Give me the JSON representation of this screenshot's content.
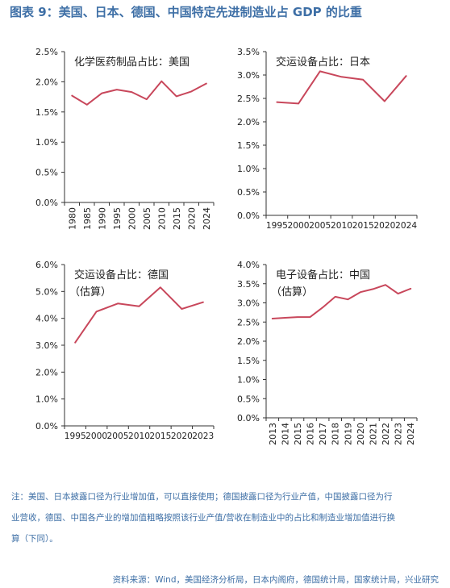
{
  "page": {
    "title": "图表 9：美国、日本、德国、中国特定先进制造业占 GDP 的比重",
    "note_lines": [
      "注：美国、日本披露口径为行业增加值，可以直接使用；德国披露口径为行业产值，中国披露口径为行",
      "业营收，德国、中国各产业的增加值粗略按照该行业产值/营收在制造业中的占比和制造业增加值进行换",
      "算（下同）。"
    ],
    "source": "资料来源：Wind，美国经济分析局，日本内阁府，德国统计局，国家统计局，兴业研究"
  },
  "colors": {
    "line": "#c8475b",
    "axis": "#333333",
    "text": "#222222",
    "blue_text": "#3e6fa6"
  },
  "chart_data": [
    {
      "type": "line",
      "title": "化学医药制品占比：美国",
      "subtitle": "",
      "x": [
        "1980",
        "1985",
        "1990",
        "1995",
        "2000",
        "2005",
        "2010",
        "2015",
        "2020",
        "2024"
      ],
      "xticks": [
        "1980",
        "1985",
        "1990",
        "1995",
        "2000",
        "2005",
        "2010",
        "2015",
        "2020",
        "2024"
      ],
      "xtick_rotated": true,
      "series": [
        {
          "values": [
            1.77,
            1.62,
            1.81,
            1.87,
            1.83,
            1.71,
            2.01,
            1.76,
            1.84,
            1.97
          ]
        }
      ],
      "ylim": [
        0,
        2.5
      ],
      "yticks": [
        "0.0%",
        "0.5%",
        "1.0%",
        "1.5%",
        "2.0%",
        "2.5%"
      ],
      "legend": "none"
    },
    {
      "type": "line",
      "title": "交运设备占比：日本",
      "subtitle": "",
      "x": [
        "1995",
        "2000",
        "2005",
        "2010",
        "2015",
        "2020",
        "2024"
      ],
      "xticks": [
        "1995",
        "2000",
        "2005",
        "2010",
        "2015",
        "2020",
        "2024"
      ],
      "xtick_rotated": false,
      "series": [
        {
          "values": [
            2.42,
            2.39,
            3.08,
            2.96,
            2.9,
            2.44,
            2.98
          ]
        }
      ],
      "ylim": [
        0,
        3.5
      ],
      "yticks": [
        "0.0%",
        "0.5%",
        "1.0%",
        "1.5%",
        "2.0%",
        "2.5%",
        "3.0%",
        "3.5%"
      ],
      "legend": "none"
    },
    {
      "type": "line",
      "title": "交运设备占比：德国",
      "subtitle": "（估算）",
      "x": [
        "1995",
        "2000",
        "2005",
        "2010",
        "2015",
        "2020",
        "2023"
      ],
      "xticks": [
        "1995",
        "2000",
        "2005",
        "2010",
        "2015",
        "2020",
        "2023"
      ],
      "xtick_rotated": false,
      "series": [
        {
          "values": [
            3.1,
            4.25,
            4.55,
            4.45,
            5.15,
            4.35,
            4.6
          ]
        }
      ],
      "ylim": [
        0,
        6.0
      ],
      "yticks": [
        "0.0%",
        "1.0%",
        "2.0%",
        "3.0%",
        "4.0%",
        "5.0%",
        "6.0%"
      ],
      "legend": "none"
    },
    {
      "type": "line",
      "title": "电子设备占比：中国",
      "subtitle": "（估算）",
      "x": [
        "2013",
        "2014",
        "2015",
        "2016",
        "2017",
        "2018",
        "2019",
        "2020",
        "2021",
        "2022",
        "2023",
        "2024"
      ],
      "xticks": [
        "2013",
        "2014",
        "2015",
        "2016",
        "2017",
        "2018",
        "2019",
        "2020",
        "2021",
        "2022",
        "2023",
        "2024"
      ],
      "xtick_rotated": true,
      "series": [
        {
          "values": [
            2.59,
            2.61,
            2.63,
            2.63,
            2.88,
            3.16,
            3.09,
            3.28,
            3.36,
            3.47,
            3.24,
            3.37
          ]
        }
      ],
      "ylim": [
        0,
        4.0
      ],
      "yticks": [
        "0.0%",
        "0.5%",
        "1.0%",
        "1.5%",
        "2.0%",
        "2.5%",
        "3.0%",
        "3.5%",
        "4.0%"
      ],
      "legend": "none"
    }
  ]
}
